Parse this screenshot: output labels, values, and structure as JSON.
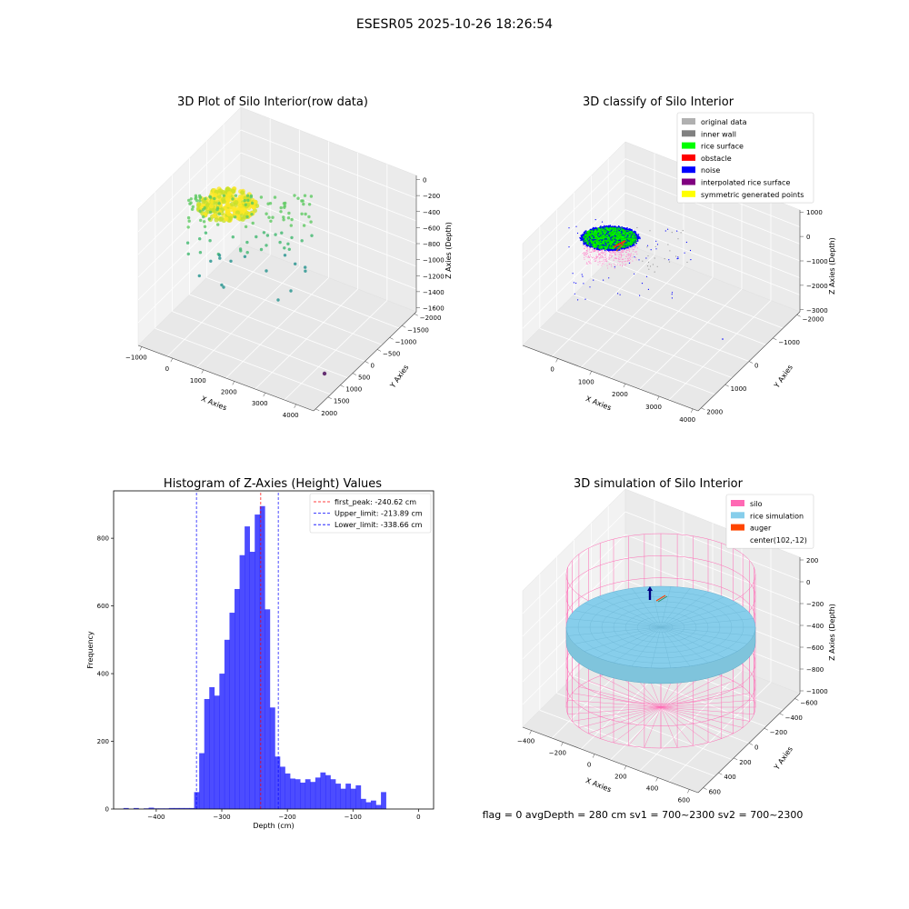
{
  "suptitle": "ESESR05 2025-10-26 18:26:54",
  "status_text": "flag = 0     avgDepth = 280 cm  sv1 = 700~2300  sv2 = 700~2300",
  "chart_data": [
    {
      "type": "scatter",
      "title": "3D Plot of Silo Interior(row data)",
      "xlabel": "X Axies",
      "ylabel": "Y Axies",
      "zlabel": "Z Axies (Depth)",
      "xticks": [
        "−1000",
        "0",
        "1000",
        "2000",
        "3000",
        "4000"
      ],
      "yticks": [
        "−2000",
        "−1500",
        "−1000",
        "−500",
        "0",
        "500",
        "1000",
        "1500",
        "2000"
      ],
      "zticks": [
        "0",
        "−200",
        "−400",
        "−600",
        "−800",
        "−1000",
        "−1200",
        "−1400",
        "−1600"
      ],
      "xlim": [
        -1000,
        4000
      ],
      "ylim": [
        -2000,
        2000
      ],
      "zlim": [
        -1600,
        0
      ],
      "colormap": [
        "#440154",
        "#3b528b",
        "#21918c",
        "#5ec962",
        "#fde725"
      ]
    },
    {
      "type": "scatter",
      "title": "3D classify of Silo Interior",
      "xlabel": "X Axies",
      "ylabel": "Y Axies",
      "zlabel": "Z Axies (Depth)",
      "xticks": [
        "0",
        "1000",
        "2000",
        "3000",
        "4000"
      ],
      "yticks": [
        "−2000",
        "−1000",
        "0",
        "1000",
        "2000"
      ],
      "zticks": [
        "1000",
        "0",
        "−1000",
        "−2000",
        "−3000"
      ],
      "xlim": [
        -1000,
        4000
      ],
      "ylim": [
        -2000,
        2000
      ],
      "zlim": [
        -3000,
        1000
      ],
      "legend_position": "top-right",
      "legend": [
        {
          "label": "original data",
          "color": "#b0b0b0"
        },
        {
          "label": "inner wall",
          "color": "#808080"
        },
        {
          "label": "rice surface",
          "color": "#00ff00"
        },
        {
          "label": "obstacle",
          "color": "#ff0000"
        },
        {
          "label": "noise",
          "color": "#0000ff"
        },
        {
          "label": "interpolated rice surface",
          "color": "#800080"
        },
        {
          "label": "symmetric generated points",
          "color": "#ffff00"
        }
      ]
    },
    {
      "type": "bar",
      "title": "Histogram of Z-Axies (Height) Values",
      "xlabel": "Depth (cm)",
      "ylabel": "Frequency",
      "xlim": [
        -465,
        23
      ],
      "ylim": [
        0,
        940
      ],
      "xticks": [
        -400,
        -300,
        -200,
        -100,
        0
      ],
      "yticks": [
        0,
        200,
        400,
        600,
        800
      ],
      "bar_color": "#0000ff",
      "bin_start": -450,
      "bin_width": 7.7,
      "values": [
        3,
        0,
        3,
        0,
        2,
        4,
        2,
        2,
        2,
        3,
        3,
        3,
        3,
        3,
        50,
        165,
        325,
        360,
        335,
        400,
        500,
        580,
        650,
        750,
        835,
        760,
        870,
        895,
        590,
        300,
        155,
        125,
        105,
        90,
        88,
        78,
        88,
        80,
        93,
        108,
        100,
        88,
        75,
        60,
        75,
        60,
        70,
        30,
        20,
        25,
        12,
        50
      ],
      "legend_position": "top-right",
      "lines": [
        {
          "label": "first_peak: -240.62 cm",
          "x": -240.62,
          "color": "#ff0000"
        },
        {
          "label": "Upper_limit: -213.89 cm",
          "x": -213.89,
          "color": "#0000ff"
        },
        {
          "label": "Lower_limit: -338.66 cm",
          "x": -338.66,
          "color": "#0000ff"
        }
      ]
    },
    {
      "type": "scatter",
      "title": "3D simulation of Silo Interior",
      "xlabel": "X Axies",
      "ylabel": "Y Axies",
      "zlabel": "Z Axies (Depth)",
      "xticks": [
        "−400",
        "−200",
        "0",
        "200",
        "400",
        "600"
      ],
      "yticks": [
        "−600",
        "−400",
        "−200",
        "0",
        "200",
        "400",
        "600"
      ],
      "zticks": [
        "200",
        "0",
        "−200",
        "−400",
        "−600",
        "−800",
        "−1000"
      ],
      "xlim": [
        -600,
        700
      ],
      "ylim": [
        -700,
        700
      ],
      "zlim": [
        -1000,
        300
      ],
      "legend_position": "top-right",
      "legend": [
        {
          "label": "silo",
          "color": "#ff69b4"
        },
        {
          "label": "rice simulation",
          "color": "#87ceeb"
        },
        {
          "label": "auger",
          "color": "#ff4500"
        },
        {
          "label": "center(102,-12)",
          "color": "#ffffff"
        }
      ]
    }
  ]
}
